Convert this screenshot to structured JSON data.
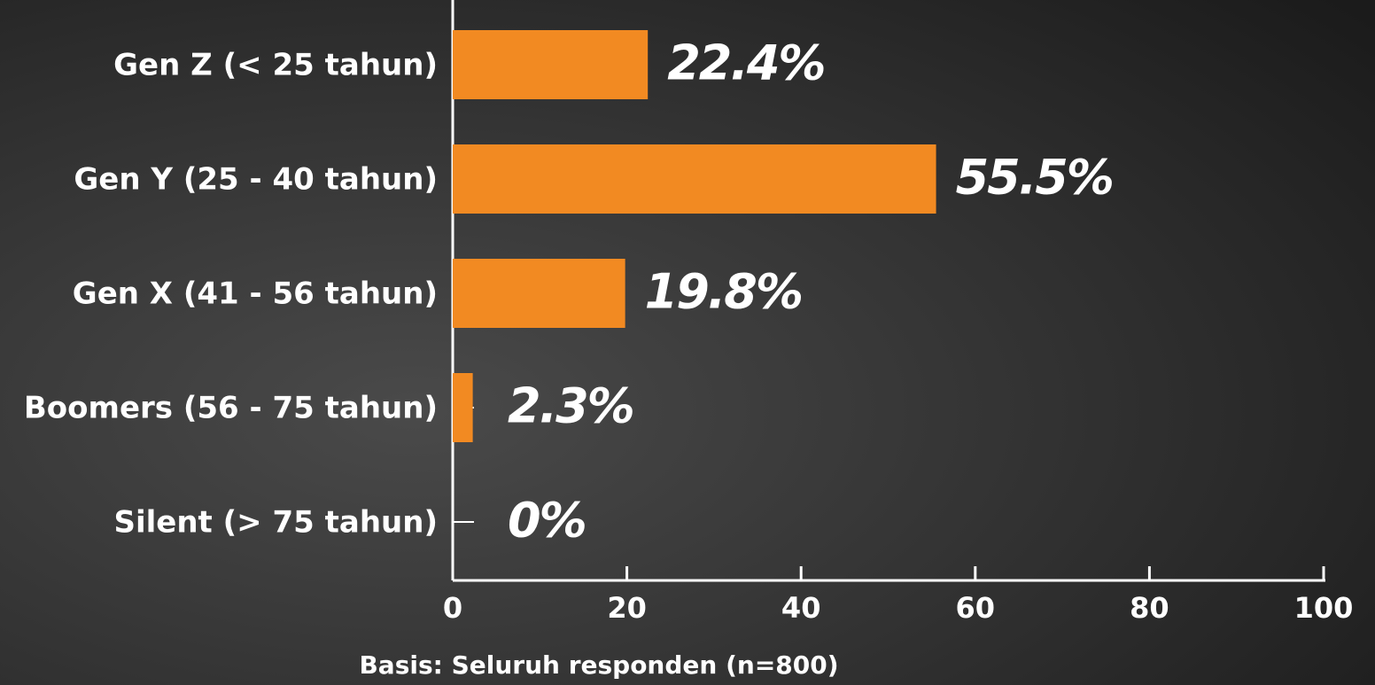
{
  "chart_data": {
    "type": "bar",
    "orientation": "horizontal",
    "categories": [
      "Gen Z (< 25 tahun)",
      "Gen Y (25 - 40 tahun)",
      "Gen X (41 - 56 tahun)",
      "Boomers (56 - 75 tahun)",
      "Silent (> 75 tahun)"
    ],
    "values": [
      22.4,
      55.5,
      19.8,
      2.3,
      0
    ],
    "value_labels": [
      "22.4%",
      "55.5%",
      "19.8%",
      "2.3%",
      "0%"
    ],
    "color": "#f28a22",
    "xlim": [
      0,
      100
    ],
    "xticks": [
      0,
      20,
      40,
      60,
      80,
      100
    ],
    "footnote": "Basis: Seluruh responden (n=800)"
  }
}
